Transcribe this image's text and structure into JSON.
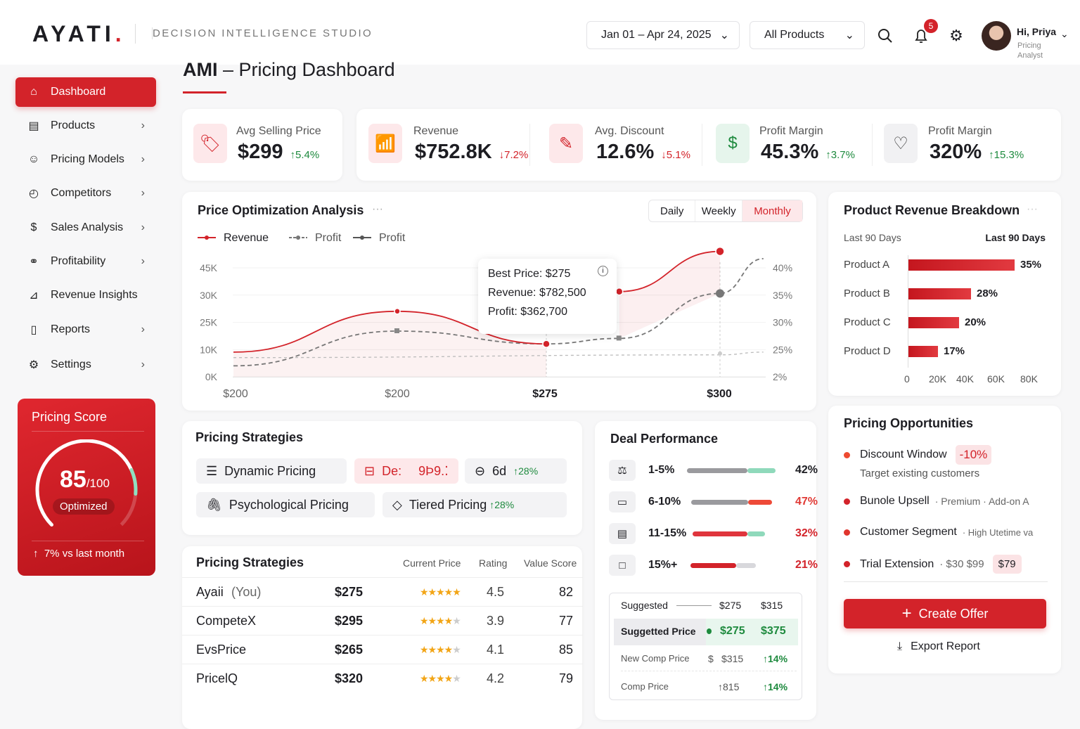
{
  "brand": {
    "logo": "AYATI",
    "logo_dot": ".",
    "studio": "DECISION INTELLIGENCE STUDIO"
  },
  "header": {
    "date_range": "Jan 01 – Apr 24, 2025",
    "product_filter": "All Products",
    "notif_count": "5",
    "user_greeting": "Hi, Priya",
    "user_role": "Pricing Analyst"
  },
  "page": {
    "title_bold": "AMI",
    "title_rest": " – Pricing Dashboard"
  },
  "sidebar": {
    "items": [
      {
        "label": "Dashboard",
        "icon": "home-icon",
        "active": true
      },
      {
        "label": "Products",
        "icon": "box-icon"
      },
      {
        "label": "Pricing Models",
        "icon": "model-icon"
      },
      {
        "label": "Competitors",
        "icon": "target-icon"
      },
      {
        "label": "Sales Analysis",
        "icon": "dollar-icon"
      },
      {
        "label": "Profitability",
        "icon": "handshake-icon"
      },
      {
        "label": "Revenue Insights",
        "icon": "chart-icon"
      },
      {
        "label": "Reports",
        "icon": "report-icon"
      },
      {
        "label": "Settings",
        "icon": "gear-icon"
      }
    ]
  },
  "score": {
    "title": "Pricing Score",
    "value": "85",
    "max": "/100",
    "status": "Optimized",
    "change": "7% vs last month",
    "fraction": 0.85
  },
  "kpis": [
    {
      "title": "Avg Selling Price",
      "value": "$299",
      "change": "5.4%",
      "dir": "up",
      "icon": "tag-icon"
    },
    {
      "title": "Revenue",
      "value": "$752.8K",
      "change": "7.2%",
      "dir": "down",
      "icon": "bar-chart-icon"
    },
    {
      "title": "Avg. Discount",
      "value": "12.6%",
      "change": "5.1%",
      "dir": "down",
      "icon": "discount-icon"
    },
    {
      "title": "Profit Margin",
      "value": "45.3%",
      "change": "3.7%",
      "dir": "up",
      "icon": "dollar-circle-icon"
    },
    {
      "title": "Profit Margin",
      "value": "320%",
      "change": "15.3%",
      "dir": "up",
      "icon": "heart-hand-icon"
    }
  ],
  "optimization": {
    "title": "Price Optimization Analysis",
    "tabs": [
      "Daily",
      "Weekly",
      "Monthly"
    ],
    "active_tab": "Monthly",
    "tooltip": {
      "best": "Best Price: $275",
      "revenue": "Revenue: $782,500",
      "profit": "Profit: $362,700"
    }
  },
  "chart_data": {
    "type": "line",
    "legend": [
      "Revenue",
      "Profit",
      "Profit"
    ],
    "legend_placement": "top-left",
    "x_ticks": [
      "$200",
      "$200",
      "$275",
      "$300"
    ],
    "y_left_ticks": [
      "45K",
      "30K",
      "25K",
      "10K",
      "0K"
    ],
    "y_right_ticks": [
      "40%",
      "35%",
      "30%",
      "25%",
      "2%"
    ],
    "series": [
      {
        "name": "Revenue",
        "color": "#d3232a",
        "points": [
          [
            0,
            9
          ],
          [
            1,
            27
          ],
          [
            2,
            13
          ]
        ],
        "points2": [
          [
            2.42,
            32
          ],
          [
            3,
            54
          ]
        ]
      },
      {
        "name": "Profit",
        "color": "#777777",
        "points": [
          [
            0,
            4
          ],
          [
            1,
            20
          ],
          [
            2,
            13
          ],
          [
            2.42,
            16
          ],
          [
            3,
            31
          ],
          [
            3.25,
            50
          ]
        ]
      },
      {
        "name": "Profit",
        "color": "#bbbbbb",
        "points": [
          [
            0,
            7
          ],
          [
            3,
            8
          ],
          [
            3.25,
            9
          ]
        ]
      }
    ]
  },
  "breakdown": {
    "title": "Product Revenue Breakdown",
    "period_left": "Last 90 Days",
    "period_right": "Last 90 Days",
    "products": [
      {
        "name": "Product A",
        "pct": 35,
        "label": "35%"
      },
      {
        "name": "Product B",
        "pct": 28,
        "label": "28%"
      },
      {
        "name": "Product C",
        "pct": 20,
        "label": "20%"
      },
      {
        "name": "Product D",
        "pct": 17,
        "label": "17%"
      }
    ],
    "x_ticks": [
      "0",
      "20K",
      "40K",
      "60K",
      "80K"
    ]
  },
  "strategies": {
    "title": "Pricing Strategies",
    "dynamic": "Dynamic Pricing",
    "de_label": "De:",
    "de_value": "9Þ9.⁚",
    "sixd": "6d",
    "sixd_change": "28%",
    "psych": "Psychological Pricing",
    "tiered": "Tiered Pricing",
    "tiered_change": "28%"
  },
  "comp": {
    "title": "Pricing Strategies",
    "cols": [
      "Current Price",
      "Rating",
      "Value Score"
    ],
    "rows": [
      {
        "name": "Ayaii",
        "tag": "(You)",
        "price": "$275",
        "stars": 5,
        "rating": "4.5",
        "score": "82"
      },
      {
        "name": "CompeteX",
        "tag": "",
        "price": "$295",
        "stars": 4,
        "rating": "3.9",
        "score": "77"
      },
      {
        "name": "EvsPrice",
        "tag": "",
        "price": "$265",
        "stars": 4,
        "rating": "4.1",
        "score": "85"
      },
      {
        "name": "PricelQ",
        "tag": "",
        "price": "$320",
        "stars": 4,
        "rating": "4.2",
        "score": "79"
      }
    ]
  },
  "deals": {
    "title": "Deal Performance",
    "rows": [
      {
        "range": "1-5%",
        "value": "42%",
        "color": "#1d1d22",
        "icon": "scale-icon",
        "segs": [
          [
            "#9a9a9e",
            0.68
          ],
          [
            "#8fd9bb",
            0.32
          ]
        ]
      },
      {
        "range": "6-10%",
        "value": "47%",
        "color": "#e03a35",
        "icon": "card-icon",
        "segs": [
          [
            "#9a9a9e",
            0.7
          ],
          [
            "#ee4a38",
            0.3
          ]
        ]
      },
      {
        "range": "11-15%",
        "value": "32%",
        "color": "#d3232a",
        "icon": "calendar-icon",
        "segs": [
          [
            "#e0353d",
            0.76
          ],
          [
            "#8fd9bb",
            0.24
          ]
        ]
      },
      {
        "range": "15%+",
        "value": "21%",
        "color": "#d3232a",
        "icon": "square-icon",
        "segs": [
          [
            "#d3232a",
            0.7
          ],
          [
            "#d8d8dc",
            0.3
          ]
        ]
      }
    ],
    "table": {
      "r1": [
        "Suggested",
        "$275",
        "$315"
      ],
      "r2": [
        "Suggetted Price",
        "$275",
        "$375"
      ],
      "r3": [
        "New Comp Price",
        "$",
        "$315",
        "↑14%"
      ],
      "r4": [
        "Comp Price",
        "↑815",
        "↑14%"
      ]
    }
  },
  "opps": {
    "title": "Pricing Opportunities",
    "items": [
      {
        "label": "Discount Window",
        "badge": "-10%",
        "sub": "Target existing customers"
      },
      {
        "label": "Bunole Upsell",
        "detail": "· Premium · Add-on A"
      },
      {
        "label": "Customer Segment",
        "detail": "· High Utetime va"
      },
      {
        "label": "Trial Extension",
        "detail": "· $30 $99",
        "badge": "$79"
      }
    ],
    "create": "Create Offer",
    "export": "Export Report"
  },
  "colors": {
    "accent": "#d3232a",
    "positive": "#1e8a3e"
  }
}
